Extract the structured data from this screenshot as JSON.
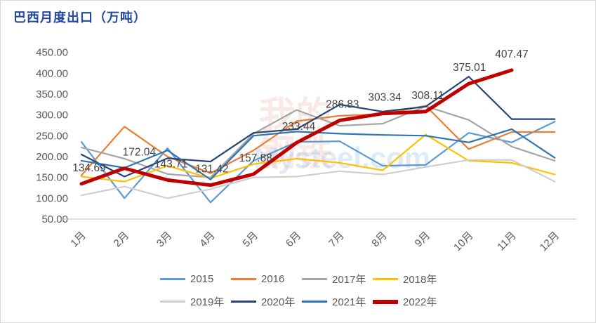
{
  "title": "巴西月度出口（万吨）",
  "title_color": "#24479E",
  "watermark": {
    "chars": "我的钢铁",
    "brand": "Mysteel.com"
  },
  "chart_data": {
    "type": "line",
    "title": "巴西月度出口（万吨）",
    "categories": [
      "1月",
      "2月",
      "3月",
      "4月",
      "5月",
      "6月",
      "7月",
      "8月",
      "9月",
      "10月",
      "11月",
      "12月"
    ],
    "ylabel": "万吨",
    "ylim": [
      50,
      450
    ],
    "ytick_step": 50,
    "ytick_format": "0.00",
    "grid": false,
    "legend_position": "bottom",
    "axis_color": "#BFBFBF",
    "series": [
      {
        "name": "2015",
        "color": "#5B9BD5",
        "values": [
          235,
          100,
          220,
          90,
          190,
          235,
          237,
          178,
          180,
          257,
          234,
          284
        ]
      },
      {
        "name": "2016",
        "color": "#ED7D31",
        "values": [
          155,
          272,
          200,
          160,
          215,
          285,
          298,
          302,
          322,
          218,
          259,
          259
        ]
      },
      {
        "name": "2017年",
        "color": "#A5A5A5",
        "values": [
          222,
          195,
          158,
          150,
          255,
          312,
          274,
          279,
          321,
          288,
          224,
          190
        ]
      },
      {
        "name": "2018年",
        "color": "#FFC000",
        "values": [
          152,
          140,
          178,
          148,
          182,
          195,
          185,
          167,
          253,
          190,
          185,
          157
        ]
      },
      {
        "name": "2019年",
        "color": "#D0CECE",
        "values": [
          107,
          128,
          100,
          122,
          150,
          152,
          165,
          157,
          175,
          192,
          192,
          140
        ]
      },
      {
        "name": "2020年",
        "color": "#264478",
        "values": [
          205,
          152,
          196,
          188,
          257,
          266,
          325,
          308,
          320,
          392,
          290,
          290
        ]
      },
      {
        "name": "2021年",
        "color": "#2E75B6",
        "values": [
          190,
          173,
          215,
          145,
          250,
          260,
          255,
          252,
          250,
          234,
          266,
          197
        ]
      },
      {
        "name": "2022年",
        "color": "#C00000",
        "width": 5,
        "values": [
          134.69,
          172.04,
          143.71,
          131.42,
          157.88,
          233.44,
          286.83,
          303.34,
          308.11,
          375.01,
          407.47,
          null
        ],
        "data_labels": [
          "134.69",
          "172.04",
          "143.71",
          "131.42",
          "157.88",
          "233.44",
          "286.83",
          "303.34",
          "308.11",
          "375.01",
          "407.47"
        ]
      }
    ]
  }
}
